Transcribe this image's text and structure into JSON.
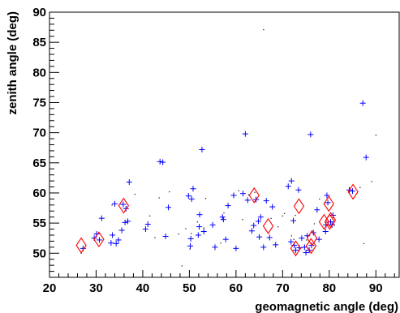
{
  "chart_data": {
    "type": "scatter",
    "xlabel": "geomagnetic angle (deg)",
    "ylabel": "zenith angle (deg)",
    "xlim": [
      20,
      95
    ],
    "ylim": [
      46,
      90
    ],
    "x_ticks": [
      20,
      30,
      40,
      50,
      60,
      70,
      80,
      90
    ],
    "y_ticks": [
      50,
      55,
      60,
      65,
      70,
      75,
      80,
      85,
      90
    ],
    "grid": false,
    "legend": "none",
    "colors": {
      "crosses": "#0000ff",
      "dots": "#000000",
      "diamonds": "#ff0000"
    },
    "series": [
      {
        "marker": "cross",
        "points": [
          [
            27.2,
            50.8
          ],
          [
            29.6,
            52.5
          ],
          [
            30.1,
            53.2
          ],
          [
            30.7,
            52.2
          ],
          [
            31.2,
            55.8
          ],
          [
            33.2,
            51.7
          ],
          [
            33.5,
            53.0
          ],
          [
            34.0,
            58.2
          ],
          [
            34.3,
            51.6
          ],
          [
            34.8,
            52.2
          ],
          [
            35.5,
            53.8
          ],
          [
            35.8,
            58.1
          ],
          [
            36.2,
            55.1
          ],
          [
            36.4,
            57.4
          ],
          [
            36.8,
            55.3
          ],
          [
            37.1,
            61.8
          ],
          [
            40.6,
            54.0
          ],
          [
            41.1,
            54.8
          ],
          [
            43.7,
            65.2
          ],
          [
            44.3,
            65.1
          ],
          [
            44.9,
            52.8
          ],
          [
            45.5,
            57.6
          ],
          [
            49.8,
            59.5
          ],
          [
            50.2,
            51.2
          ],
          [
            50.3,
            52.4
          ],
          [
            50.5,
            59.0
          ],
          [
            50.8,
            60.7
          ],
          [
            51.9,
            53.0
          ],
          [
            52.1,
            54.4
          ],
          [
            52.2,
            56.4
          ],
          [
            52.7,
            67.2
          ],
          [
            53.1,
            53.6
          ],
          [
            55.0,
            54.7
          ],
          [
            55.5,
            51.0
          ],
          [
            57.1,
            56.0
          ],
          [
            57.3,
            55.6
          ],
          [
            57.8,
            52.3
          ],
          [
            58.3,
            57.9
          ],
          [
            59.5,
            59.6
          ],
          [
            60.0,
            50.8
          ],
          [
            61.5,
            59.9
          ],
          [
            62.0,
            69.8
          ],
          [
            62.5,
            58.8
          ],
          [
            63.4,
            53.7
          ],
          [
            63.8,
            54.6
          ],
          [
            64.3,
            58.9
          ],
          [
            64.8,
            55.3
          ],
          [
            65.0,
            52.7
          ],
          [
            65.3,
            56.0
          ],
          [
            65.9,
            51.0
          ],
          [
            66.5,
            58.7
          ],
          [
            67.2,
            52.6
          ],
          [
            67.8,
            57.7
          ],
          [
            68.5,
            51.4
          ],
          [
            71.2,
            61.1
          ],
          [
            71.8,
            51.9
          ],
          [
            71.9,
            62.0
          ],
          [
            72.3,
            55.4
          ],
          [
            72.5,
            51.3
          ],
          [
            72.8,
            50.5
          ],
          [
            73.4,
            60.5
          ],
          [
            73.6,
            50.9
          ],
          [
            74.1,
            52.5
          ],
          [
            74.7,
            51.0
          ],
          [
            75.0,
            50.1
          ],
          [
            75.3,
            52.9
          ],
          [
            75.7,
            50.5
          ],
          [
            76.0,
            69.7
          ],
          [
            76.2,
            51.3
          ],
          [
            76.6,
            53.4
          ],
          [
            77.4,
            57.2
          ],
          [
            77.8,
            52.3
          ],
          [
            79.2,
            53.6
          ],
          [
            79.3,
            54.7
          ],
          [
            79.5,
            59.6
          ],
          [
            79.7,
            58.4
          ],
          [
            80.3,
            55.2
          ],
          [
            80.6,
            54.7
          ],
          [
            80.8,
            56.3
          ],
          [
            84.3,
            60.5
          ],
          [
            85.0,
            60.3
          ],
          [
            87.2,
            74.9
          ],
          [
            87.9,
            65.9
          ]
        ]
      },
      {
        "marker": "dot",
        "points": [
          [
            26.8,
            50.0
          ],
          [
            33.4,
            58.0
          ],
          [
            38.3,
            59.8
          ],
          [
            41.5,
            56.2
          ],
          [
            42.6,
            52.6
          ],
          [
            43.5,
            59.2
          ],
          [
            45.7,
            60.2
          ],
          [
            47.7,
            53.2
          ],
          [
            48.4,
            47.9
          ],
          [
            49.2,
            54.1
          ],
          [
            50.1,
            50.7
          ],
          [
            50.4,
            53.3
          ],
          [
            51.7,
            55.2
          ],
          [
            53.1,
            54.2
          ],
          [
            53.5,
            59.1
          ],
          [
            56.7,
            51.7
          ],
          [
            57.4,
            56.7
          ],
          [
            60.6,
            60.4
          ],
          [
            61.4,
            55.6
          ],
          [
            62.7,
            59.7
          ],
          [
            64.0,
            60.1
          ],
          [
            65.9,
            87.1
          ],
          [
            67.5,
            55.8
          ],
          [
            69.0,
            54.4
          ],
          [
            70.0,
            56.2
          ],
          [
            70.4,
            56.6
          ],
          [
            71.9,
            52.9
          ],
          [
            72.4,
            52.3
          ],
          [
            72.7,
            56.3
          ],
          [
            75.1,
            52.2
          ],
          [
            76.5,
            50.5
          ],
          [
            76.8,
            54.9
          ],
          [
            77.9,
            59.0
          ],
          [
            81.1,
            54.7
          ],
          [
            86.6,
            60.9
          ],
          [
            87.4,
            51.6
          ],
          [
            89.1,
            61.9
          ],
          [
            90.0,
            69.6
          ]
        ]
      },
      {
        "marker": "diamond",
        "points": [
          [
            26.8,
            51.3
          ],
          [
            30.6,
            52.3
          ],
          [
            35.9,
            57.9
          ],
          [
            63.9,
            59.6
          ],
          [
            66.9,
            54.5
          ],
          [
            72.8,
            50.8
          ],
          [
            73.5,
            57.8
          ],
          [
            76.1,
            51.2
          ],
          [
            76.3,
            52.5
          ],
          [
            78.9,
            55.2
          ],
          [
            79.9,
            58.2
          ],
          [
            80.1,
            55.2
          ],
          [
            80.3,
            55.5
          ],
          [
            85.1,
            60.2
          ]
        ]
      }
    ]
  }
}
